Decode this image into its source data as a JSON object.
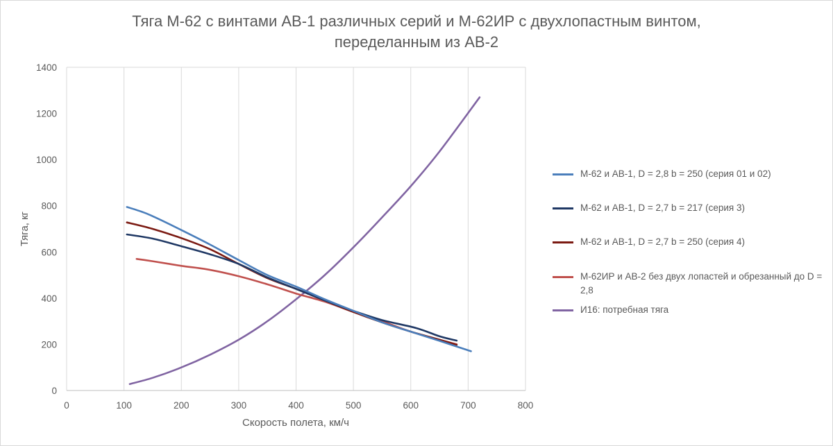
{
  "chart_data": {
    "type": "line",
    "title_lines": [
      "Тяга М-62 с винтами АВ-1 различных серий и М-62ИР с двухлопастным винтом,",
      "переделанным из АВ-2"
    ],
    "xlabel": "Скорость полета, км/ч",
    "ylabel": "Тяга, кг",
    "xlim": [
      0,
      800
    ],
    "ylim": [
      0,
      1400
    ],
    "xticks": [
      0,
      100,
      200,
      300,
      400,
      500,
      600,
      700,
      800
    ],
    "yticks": [
      0,
      200,
      400,
      600,
      800,
      1000,
      1200,
      1400
    ],
    "grid": "vertical",
    "legend_position": "right",
    "series": [
      {
        "name": "М-62 и АВ-1, D = 2,8 b = 250 (серия 01 и 02)",
        "color": "#4a7ebb",
        "x": [
          105,
          130,
          150,
          200,
          250,
          300,
          350,
          400,
          450,
          500,
          550,
          600,
          650,
          705
        ],
        "y": [
          795,
          775,
          755,
          695,
          632,
          565,
          500,
          450,
          395,
          345,
          295,
          255,
          215,
          170
        ]
      },
      {
        "name": "М-62 и АВ-1, D = 2,7 b = 217 (серия 3)",
        "color": "#1f3864",
        "x": [
          105,
          150,
          200,
          250,
          300,
          350,
          400,
          450,
          500,
          550,
          610,
          650,
          680
        ],
        "y": [
          676,
          658,
          625,
          590,
          548,
          490,
          440,
          390,
          345,
          305,
          270,
          235,
          216
        ]
      },
      {
        "name": "М-62 и АВ-1, D = 2,7 b = 250 (серия 4)",
        "color": "#7b1a12",
        "x": [
          105,
          150,
          200,
          250,
          300,
          350,
          400,
          450,
          500,
          550,
          600,
          650,
          680
        ],
        "y": [
          728,
          700,
          660,
          612,
          548,
          487,
          440,
          390,
          340,
          295,
          255,
          220,
          198
        ]
      },
      {
        "name": "М-62ИР и АВ-2 без двух лопастей и обрезанный до D = 2,8",
        "color": "#c0504d",
        "x": [
          122,
          150,
          200,
          245,
          300,
          350,
          400,
          450,
          500,
          550,
          600,
          650,
          680
        ],
        "y": [
          570,
          560,
          540,
          525,
          495,
          460,
          420,
          385,
          340,
          300,
          255,
          220,
          200
        ]
      },
      {
        "name": "И16: потребная тяга",
        "color": "#8064a2",
        "x": [
          110,
          150,
          200,
          250,
          300,
          350,
          400,
          450,
          500,
          550,
          600,
          650,
          720
        ],
        "y": [
          28,
          55,
          100,
          155,
          220,
          300,
          395,
          500,
          620,
          750,
          885,
          1035,
          1270
        ]
      }
    ]
  }
}
